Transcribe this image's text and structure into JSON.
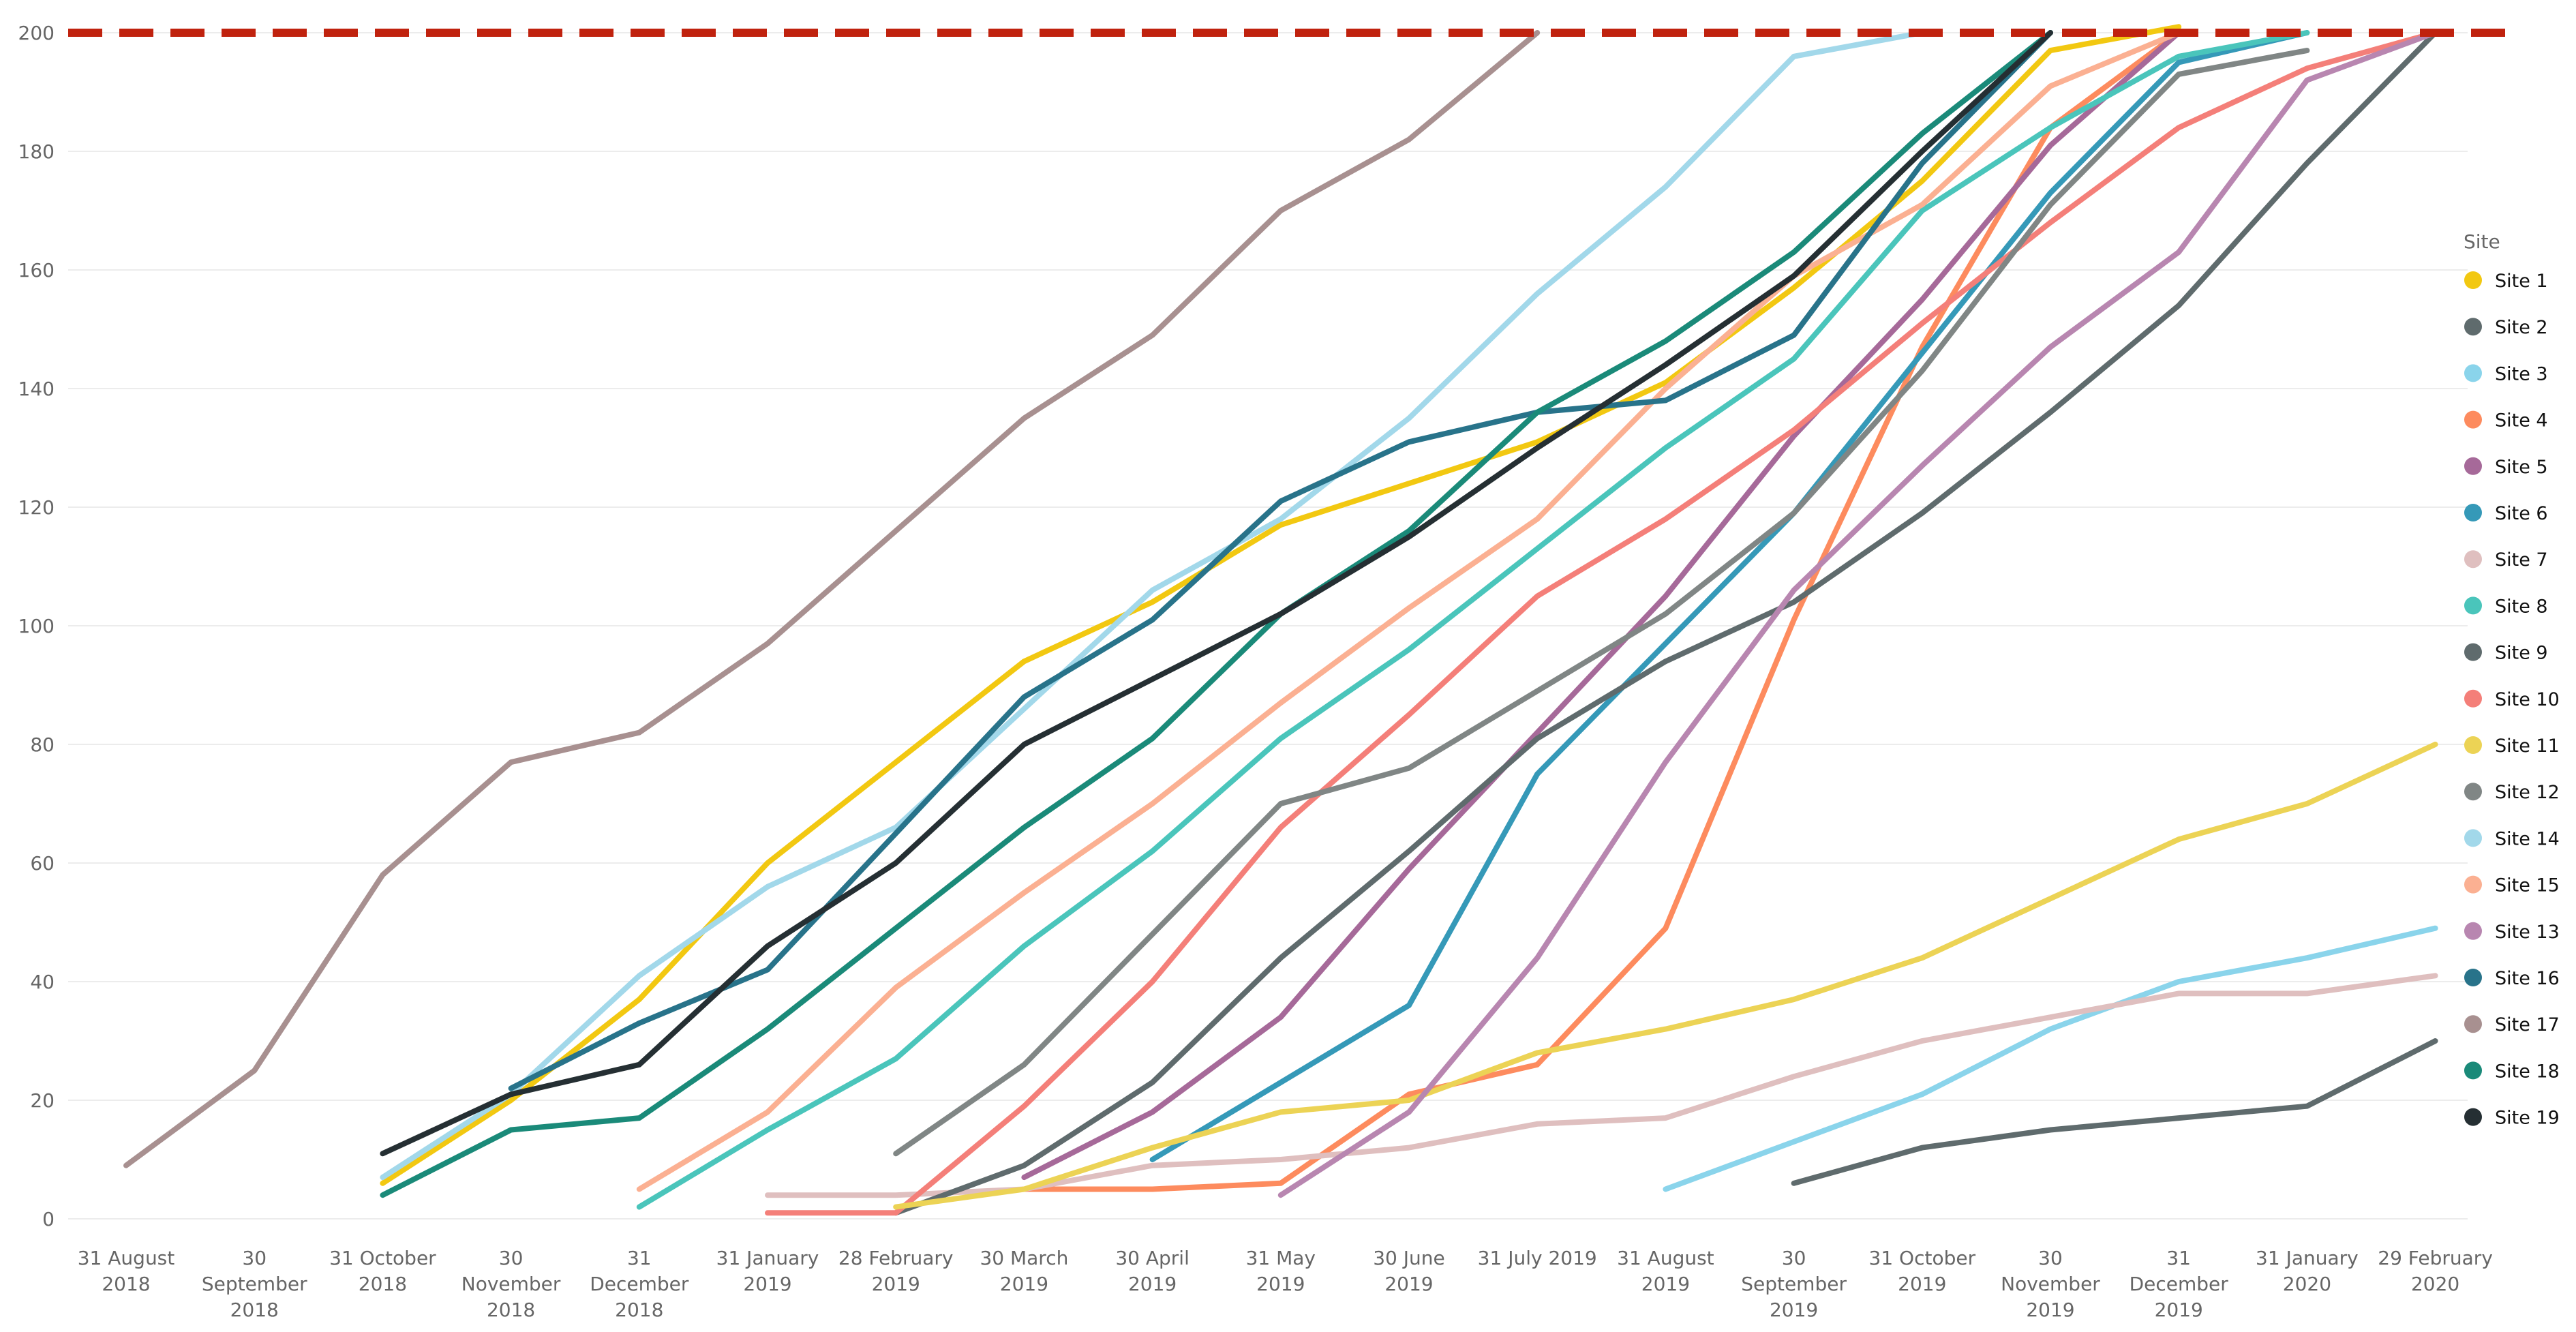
{
  "chart_data": {
    "type": "line",
    "title": "",
    "xlabel": "",
    "ylabel": "",
    "ylim": [
      0,
      200
    ],
    "y_ticks": [
      0,
      20,
      40,
      60,
      80,
      100,
      120,
      140,
      160,
      180,
      200
    ],
    "grid": true,
    "legend_title": "Site",
    "legend_position": "right",
    "target_value": 200,
    "target_color": "#c0220e",
    "x": [
      [
        "31 August",
        "2018"
      ],
      [
        "30",
        "September",
        "2018"
      ],
      [
        "31 October",
        "2018"
      ],
      [
        "30",
        "November",
        "2018"
      ],
      [
        "31",
        "December",
        "2018"
      ],
      [
        "31 January",
        "2019"
      ],
      [
        "28 February",
        "2019"
      ],
      [
        "30 March",
        "2019"
      ],
      [
        "30 April",
        "2019"
      ],
      [
        "31 May",
        "2019"
      ],
      [
        "30 June",
        "2019"
      ],
      [
        "31 July 2019"
      ],
      [
        "31 August",
        "2019"
      ],
      [
        "30",
        "September",
        "2019"
      ],
      [
        "31 October",
        "2019"
      ],
      [
        "30",
        "November",
        "2019"
      ],
      [
        "31",
        "December",
        "2019"
      ],
      [
        "31 January",
        "2020"
      ],
      [
        "29 February",
        "2020"
      ]
    ],
    "series": [
      {
        "name": "Site 1",
        "color": "#f2c811",
        "values": [
          null,
          null,
          6,
          20,
          37,
          60,
          77,
          94,
          104,
          117,
          124,
          131,
          141,
          157,
          175,
          197,
          201,
          null,
          null
        ]
      },
      {
        "name": "Site 2",
        "color": "#5f6b6d",
        "values": [
          null,
          null,
          null,
          null,
          null,
          null,
          null,
          null,
          null,
          null,
          null,
          null,
          null,
          6,
          12,
          15,
          17,
          19,
          30
        ]
      },
      {
        "name": "Site 3",
        "color": "#8ad4eb",
        "values": [
          null,
          null,
          null,
          null,
          null,
          null,
          null,
          null,
          null,
          null,
          null,
          null,
          5,
          13,
          21,
          32,
          40,
          44,
          49
        ]
      },
      {
        "name": "Site 4",
        "color": "#fd8b5e",
        "values": [
          null,
          null,
          null,
          null,
          null,
          null,
          null,
          5,
          5,
          6,
          21,
          26,
          49,
          101,
          147,
          184,
          200,
          null,
          null
        ]
      },
      {
        "name": "Site 5",
        "color": "#a66999",
        "values": [
          null,
          null,
          null,
          null,
          null,
          null,
          null,
          7,
          18,
          34,
          59,
          82,
          105,
          132,
          155,
          181,
          200,
          null,
          null
        ]
      },
      {
        "name": "Site 6",
        "color": "#3599b8",
        "values": [
          null,
          null,
          null,
          null,
          null,
          null,
          null,
          null,
          10,
          23,
          36,
          75,
          97,
          119,
          146,
          173,
          195,
          200,
          null
        ]
      },
      {
        "name": "Site 7",
        "color": "#dfbfbf",
        "values": [
          null,
          null,
          null,
          null,
          null,
          4,
          4,
          5,
          9,
          10,
          12,
          16,
          17,
          24,
          30,
          34,
          38,
          38,
          41
        ]
      },
      {
        "name": "Site 8",
        "color": "#4ac5bb",
        "values": [
          null,
          null,
          null,
          null,
          2,
          15,
          27,
          46,
          62,
          81,
          96,
          113,
          130,
          145,
          170,
          184,
          196,
          200,
          null
        ]
      },
      {
        "name": "Site 9",
        "color": "#5f6b6d",
        "values": [
          null,
          null,
          null,
          null,
          null,
          null,
          1,
          9,
          23,
          44,
          62,
          81,
          94,
          104,
          119,
          136,
          154,
          178,
          200
        ]
      },
      {
        "name": "Site 10",
        "color": "#f47f79",
        "values": [
          null,
          null,
          null,
          null,
          null,
          1,
          1,
          19,
          40,
          66,
          85,
          105,
          118,
          133,
          151,
          168,
          184,
          194,
          200
        ]
      },
      {
        "name": "Site 11",
        "color": "#ecd355",
        "values": [
          null,
          null,
          null,
          null,
          null,
          null,
          2,
          5,
          12,
          18,
          20,
          28,
          32,
          37,
          44,
          54,
          64,
          70,
          80
        ]
      },
      {
        "name": "Site 12",
        "color": "#808685",
        "values": [
          null,
          null,
          null,
          null,
          null,
          null,
          11,
          26,
          48,
          70,
          76,
          89,
          102,
          119,
          143,
          171,
          193,
          197,
          null
        ]
      },
      {
        "name": "Site 14",
        "color": "#a2d8ea",
        "values": [
          null,
          null,
          7,
          21,
          41,
          56,
          66,
          86,
          106,
          118,
          135,
          156,
          174,
          196,
          200,
          null,
          null,
          null,
          null
        ]
      },
      {
        "name": "Site 15",
        "color": "#fbb092",
        "values": [
          null,
          null,
          null,
          null,
          5,
          18,
          39,
          55,
          70,
          87,
          103,
          118,
          140,
          159,
          171,
          191,
          200,
          null,
          null
        ]
      },
      {
        "name": "Site 13",
        "color": "#b886b0",
        "values": [
          null,
          null,
          null,
          null,
          null,
          null,
          null,
          null,
          null,
          4,
          18,
          44,
          77,
          106,
          127,
          147,
          163,
          192,
          200
        ]
      },
      {
        "name": "Site 16",
        "color": "#28738a",
        "values": [
          null,
          null,
          null,
          22,
          33,
          42,
          65,
          88,
          101,
          121,
          131,
          136,
          138,
          149,
          178,
          200,
          null,
          null,
          null
        ]
      },
      {
        "name": "Site 17",
        "color": "#a89090",
        "values": [
          9,
          25,
          58,
          77,
          82,
          97,
          116,
          135,
          149,
          170,
          182,
          200,
          null,
          null,
          null,
          null,
          null,
          null,
          null
        ]
      },
      {
        "name": "Site 18",
        "color": "#1a8a79",
        "values": [
          null,
          null,
          4,
          15,
          17,
          32,
          49,
          66,
          81,
          102,
          116,
          136,
          148,
          163,
          183,
          200,
          null,
          null,
          null
        ]
      },
      {
        "name": "Site 19",
        "color": "#252f33",
        "values": [
          null,
          null,
          11,
          21,
          26,
          46,
          60,
          80,
          91,
          102,
          115,
          130,
          144,
          159,
          180,
          200,
          null,
          null,
          null
        ]
      }
    ]
  }
}
